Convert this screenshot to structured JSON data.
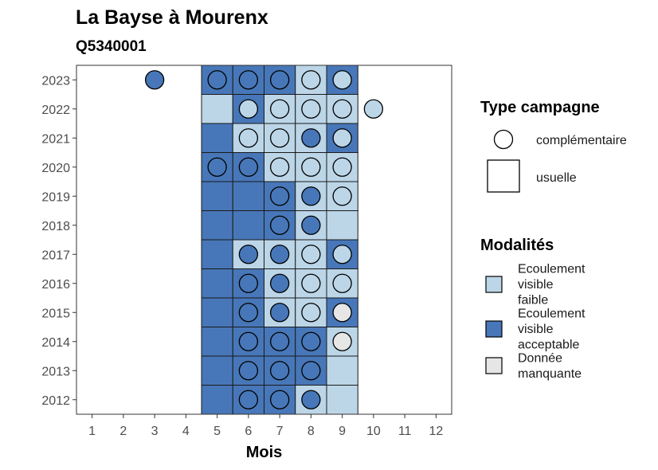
{
  "chart_data": {
    "type": "heatmap",
    "title": "La Bayse à Mourenx",
    "subtitle": "Q5340001",
    "xlabel": "Mois",
    "ylabel": "",
    "x_ticks": [
      "1",
      "2",
      "3",
      "4",
      "5",
      "6",
      "7",
      "8",
      "9",
      "10",
      "11",
      "12"
    ],
    "y_ticks": [
      "2023",
      "2022",
      "2021",
      "2020",
      "2019",
      "2018",
      "2017",
      "2016",
      "2015",
      "2014",
      "2013",
      "2012"
    ],
    "xlim": [
      0.5,
      12.5
    ],
    "grid": false,
    "colors": {
      "Ecoulement visible faible": "#bcd6e8",
      "Ecoulement visible acceptable": "#4777b8",
      "Donnée manquante": "#e6e6e6"
    },
    "legend_type": {
      "title": "Type campagne",
      "items": [
        {
          "label": "complémentaire",
          "shape": "circle"
        },
        {
          "label": "usuelle",
          "shape": "square"
        }
      ]
    },
    "legend_modalites": {
      "title": "Modalités",
      "items": [
        {
          "key": "faible",
          "label_lines": [
            "Ecoulement",
            "visible",
            "faible"
          ],
          "color": "#bcd6e8"
        },
        {
          "key": "acceptable",
          "label_lines": [
            "Ecoulement",
            "visible",
            "acceptable"
          ],
          "color": "#4777b8"
        },
        {
          "key": "manquante",
          "label_lines": [
            "Donnée",
            "manquante"
          ],
          "color": "#e6e6e6"
        }
      ]
    },
    "usuelle": [
      {
        "year": 2023,
        "month": 5,
        "value": "acceptable"
      },
      {
        "year": 2023,
        "month": 6,
        "value": "acceptable"
      },
      {
        "year": 2023,
        "month": 7,
        "value": "acceptable"
      },
      {
        "year": 2023,
        "month": 8,
        "value": "faible"
      },
      {
        "year": 2023,
        "month": 9,
        "value": "acceptable"
      },
      {
        "year": 2022,
        "month": 5,
        "value": "faible"
      },
      {
        "year": 2022,
        "month": 6,
        "value": "acceptable"
      },
      {
        "year": 2022,
        "month": 7,
        "value": "faible"
      },
      {
        "year": 2022,
        "month": 8,
        "value": "faible"
      },
      {
        "year": 2022,
        "month": 9,
        "value": "faible"
      },
      {
        "year": 2021,
        "month": 5,
        "value": "acceptable"
      },
      {
        "year": 2021,
        "month": 6,
        "value": "faible"
      },
      {
        "year": 2021,
        "month": 7,
        "value": "faible"
      },
      {
        "year": 2021,
        "month": 8,
        "value": "faible"
      },
      {
        "year": 2021,
        "month": 9,
        "value": "acceptable"
      },
      {
        "year": 2020,
        "month": 5,
        "value": "acceptable"
      },
      {
        "year": 2020,
        "month": 6,
        "value": "acceptable"
      },
      {
        "year": 2020,
        "month": 7,
        "value": "faible"
      },
      {
        "year": 2020,
        "month": 8,
        "value": "faible"
      },
      {
        "year": 2020,
        "month": 9,
        "value": "faible"
      },
      {
        "year": 2019,
        "month": 5,
        "value": "acceptable"
      },
      {
        "year": 2019,
        "month": 6,
        "value": "acceptable"
      },
      {
        "year": 2019,
        "month": 7,
        "value": "acceptable"
      },
      {
        "year": 2019,
        "month": 8,
        "value": "faible"
      },
      {
        "year": 2019,
        "month": 9,
        "value": "faible"
      },
      {
        "year": 2018,
        "month": 5,
        "value": "acceptable"
      },
      {
        "year": 2018,
        "month": 6,
        "value": "acceptable"
      },
      {
        "year": 2018,
        "month": 7,
        "value": "acceptable"
      },
      {
        "year": 2018,
        "month": 8,
        "value": "faible"
      },
      {
        "year": 2018,
        "month": 9,
        "value": "faible"
      },
      {
        "year": 2017,
        "month": 5,
        "value": "acceptable"
      },
      {
        "year": 2017,
        "month": 6,
        "value": "faible"
      },
      {
        "year": 2017,
        "month": 7,
        "value": "faible"
      },
      {
        "year": 2017,
        "month": 8,
        "value": "faible"
      },
      {
        "year": 2017,
        "month": 9,
        "value": "acceptable"
      },
      {
        "year": 2016,
        "month": 5,
        "value": "acceptable"
      },
      {
        "year": 2016,
        "month": 6,
        "value": "acceptable"
      },
      {
        "year": 2016,
        "month": 7,
        "value": "faible"
      },
      {
        "year": 2016,
        "month": 8,
        "value": "faible"
      },
      {
        "year": 2016,
        "month": 9,
        "value": "faible"
      },
      {
        "year": 2015,
        "month": 5,
        "value": "acceptable"
      },
      {
        "year": 2015,
        "month": 6,
        "value": "acceptable"
      },
      {
        "year": 2015,
        "month": 7,
        "value": "faible"
      },
      {
        "year": 2015,
        "month": 8,
        "value": "faible"
      },
      {
        "year": 2015,
        "month": 9,
        "value": "acceptable"
      },
      {
        "year": 2014,
        "month": 5,
        "value": "acceptable"
      },
      {
        "year": 2014,
        "month": 6,
        "value": "acceptable"
      },
      {
        "year": 2014,
        "month": 7,
        "value": "acceptable"
      },
      {
        "year": 2014,
        "month": 8,
        "value": "acceptable"
      },
      {
        "year": 2014,
        "month": 9,
        "value": "faible"
      },
      {
        "year": 2013,
        "month": 5,
        "value": "acceptable"
      },
      {
        "year": 2013,
        "month": 6,
        "value": "acceptable"
      },
      {
        "year": 2013,
        "month": 7,
        "value": "acceptable"
      },
      {
        "year": 2013,
        "month": 8,
        "value": "acceptable"
      },
      {
        "year": 2013,
        "month": 9,
        "value": "faible"
      },
      {
        "year": 2012,
        "month": 5,
        "value": "acceptable"
      },
      {
        "year": 2012,
        "month": 6,
        "value": "acceptable"
      },
      {
        "year": 2012,
        "month": 7,
        "value": "acceptable"
      },
      {
        "year": 2012,
        "month": 8,
        "value": "faible"
      },
      {
        "year": 2012,
        "month": 9,
        "value": "faible"
      }
    ],
    "complementaire": [
      {
        "year": 2023,
        "month": 3,
        "value": "acceptable"
      },
      {
        "year": 2023,
        "month": 5,
        "value": "acceptable"
      },
      {
        "year": 2023,
        "month": 6,
        "value": "acceptable"
      },
      {
        "year": 2023,
        "month": 7,
        "value": "acceptable"
      },
      {
        "year": 2023,
        "month": 8,
        "value": "faible"
      },
      {
        "year": 2023,
        "month": 9,
        "value": "faible"
      },
      {
        "year": 2022,
        "month": 6,
        "value": "faible"
      },
      {
        "year": 2022,
        "month": 7,
        "value": "faible"
      },
      {
        "year": 2022,
        "month": 8,
        "value": "faible"
      },
      {
        "year": 2022,
        "month": 9,
        "value": "faible"
      },
      {
        "year": 2022,
        "month": 10,
        "value": "faible"
      },
      {
        "year": 2021,
        "month": 6,
        "value": "faible"
      },
      {
        "year": 2021,
        "month": 7,
        "value": "faible"
      },
      {
        "year": 2021,
        "month": 8,
        "value": "acceptable"
      },
      {
        "year": 2021,
        "month": 9,
        "value": "faible"
      },
      {
        "year": 2020,
        "month": 5,
        "value": "acceptable"
      },
      {
        "year": 2020,
        "month": 6,
        "value": "acceptable"
      },
      {
        "year": 2020,
        "month": 7,
        "value": "faible"
      },
      {
        "year": 2020,
        "month": 8,
        "value": "faible"
      },
      {
        "year": 2020,
        "month": 9,
        "value": "faible"
      },
      {
        "year": 2019,
        "month": 7,
        "value": "acceptable"
      },
      {
        "year": 2019,
        "month": 8,
        "value": "acceptable"
      },
      {
        "year": 2019,
        "month": 9,
        "value": "faible"
      },
      {
        "year": 2018,
        "month": 7,
        "value": "acceptable"
      },
      {
        "year": 2018,
        "month": 8,
        "value": "acceptable"
      },
      {
        "year": 2017,
        "month": 6,
        "value": "acceptable"
      },
      {
        "year": 2017,
        "month": 7,
        "value": "acceptable"
      },
      {
        "year": 2017,
        "month": 8,
        "value": "faible"
      },
      {
        "year": 2017,
        "month": 9,
        "value": "faible"
      },
      {
        "year": 2016,
        "month": 6,
        "value": "acceptable"
      },
      {
        "year": 2016,
        "month": 7,
        "value": "acceptable"
      },
      {
        "year": 2016,
        "month": 8,
        "value": "faible"
      },
      {
        "year": 2016,
        "month": 9,
        "value": "faible"
      },
      {
        "year": 2015,
        "month": 6,
        "value": "acceptable"
      },
      {
        "year": 2015,
        "month": 7,
        "value": "acceptable"
      },
      {
        "year": 2015,
        "month": 8,
        "value": "faible"
      },
      {
        "year": 2015,
        "month": 9,
        "value": "manquante"
      },
      {
        "year": 2014,
        "month": 6,
        "value": "acceptable"
      },
      {
        "year": 2014,
        "month": 7,
        "value": "acceptable"
      },
      {
        "year": 2014,
        "month": 8,
        "value": "acceptable"
      },
      {
        "year": 2014,
        "month": 9,
        "value": "manquante"
      },
      {
        "year": 2013,
        "month": 6,
        "value": "acceptable"
      },
      {
        "year": 2013,
        "month": 7,
        "value": "acceptable"
      },
      {
        "year": 2013,
        "month": 8,
        "value": "acceptable"
      },
      {
        "year": 2012,
        "month": 6,
        "value": "acceptable"
      },
      {
        "year": 2012,
        "month": 7,
        "value": "acceptable"
      },
      {
        "year": 2012,
        "month": 8,
        "value": "acceptable"
      }
    ]
  }
}
